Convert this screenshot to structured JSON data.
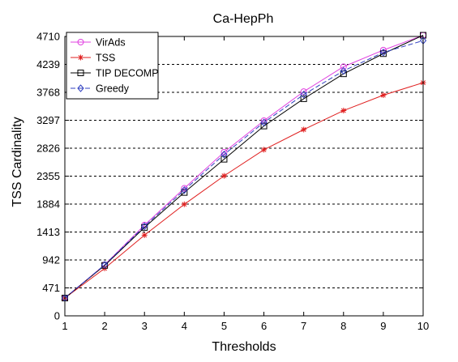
{
  "chart_data": {
    "type": "line",
    "title": "Ca-HepPh",
    "xlabel": "Thresholds",
    "ylabel": "TSS Cardinality",
    "x": [
      1,
      2,
      3,
      4,
      5,
      6,
      7,
      8,
      9,
      10
    ],
    "xlim": [
      1,
      10
    ],
    "ylim": [
      0,
      4710
    ],
    "xticks": [
      "1",
      "2",
      "3",
      "4",
      "5",
      "6",
      "7",
      "8",
      "9",
      "10"
    ],
    "yticks": [
      0,
      471,
      942,
      1413,
      1884,
      2355,
      2826,
      3297,
      3768,
      4239,
      4710
    ],
    "ytick_labels": [
      "0",
      "471",
      "942",
      "1413",
      "1884",
      "2355",
      "2826",
      "3297",
      "3768",
      "4239",
      "4710"
    ],
    "grid": "horizontal-dashed",
    "legend_position": "top-left",
    "series": [
      {
        "name": "VirAds",
        "color": "#e040e0",
        "marker": "circle",
        "dash": "solid",
        "values": [
          300,
          860,
          1530,
          2150,
          2760,
          3290,
          3780,
          4200,
          4480,
          4730
        ]
      },
      {
        "name": "TSS",
        "color": "#e02020",
        "marker": "star",
        "dash": "solid",
        "values": [
          300,
          800,
          1360,
          1880,
          2360,
          2800,
          3140,
          3460,
          3720,
          3930
        ]
      },
      {
        "name": "TIP DECOMP",
        "color": "#000000",
        "marker": "square",
        "dash": "solid",
        "values": [
          300,
          850,
          1490,
          2080,
          2640,
          3200,
          3660,
          4080,
          4420,
          4730
        ]
      },
      {
        "name": "Greedy",
        "color": "#3040c0",
        "marker": "diamond",
        "dash": "dashed",
        "values": [
          300,
          860,
          1510,
          2120,
          2720,
          3260,
          3730,
          4130,
          4440,
          4640
        ]
      }
    ]
  }
}
